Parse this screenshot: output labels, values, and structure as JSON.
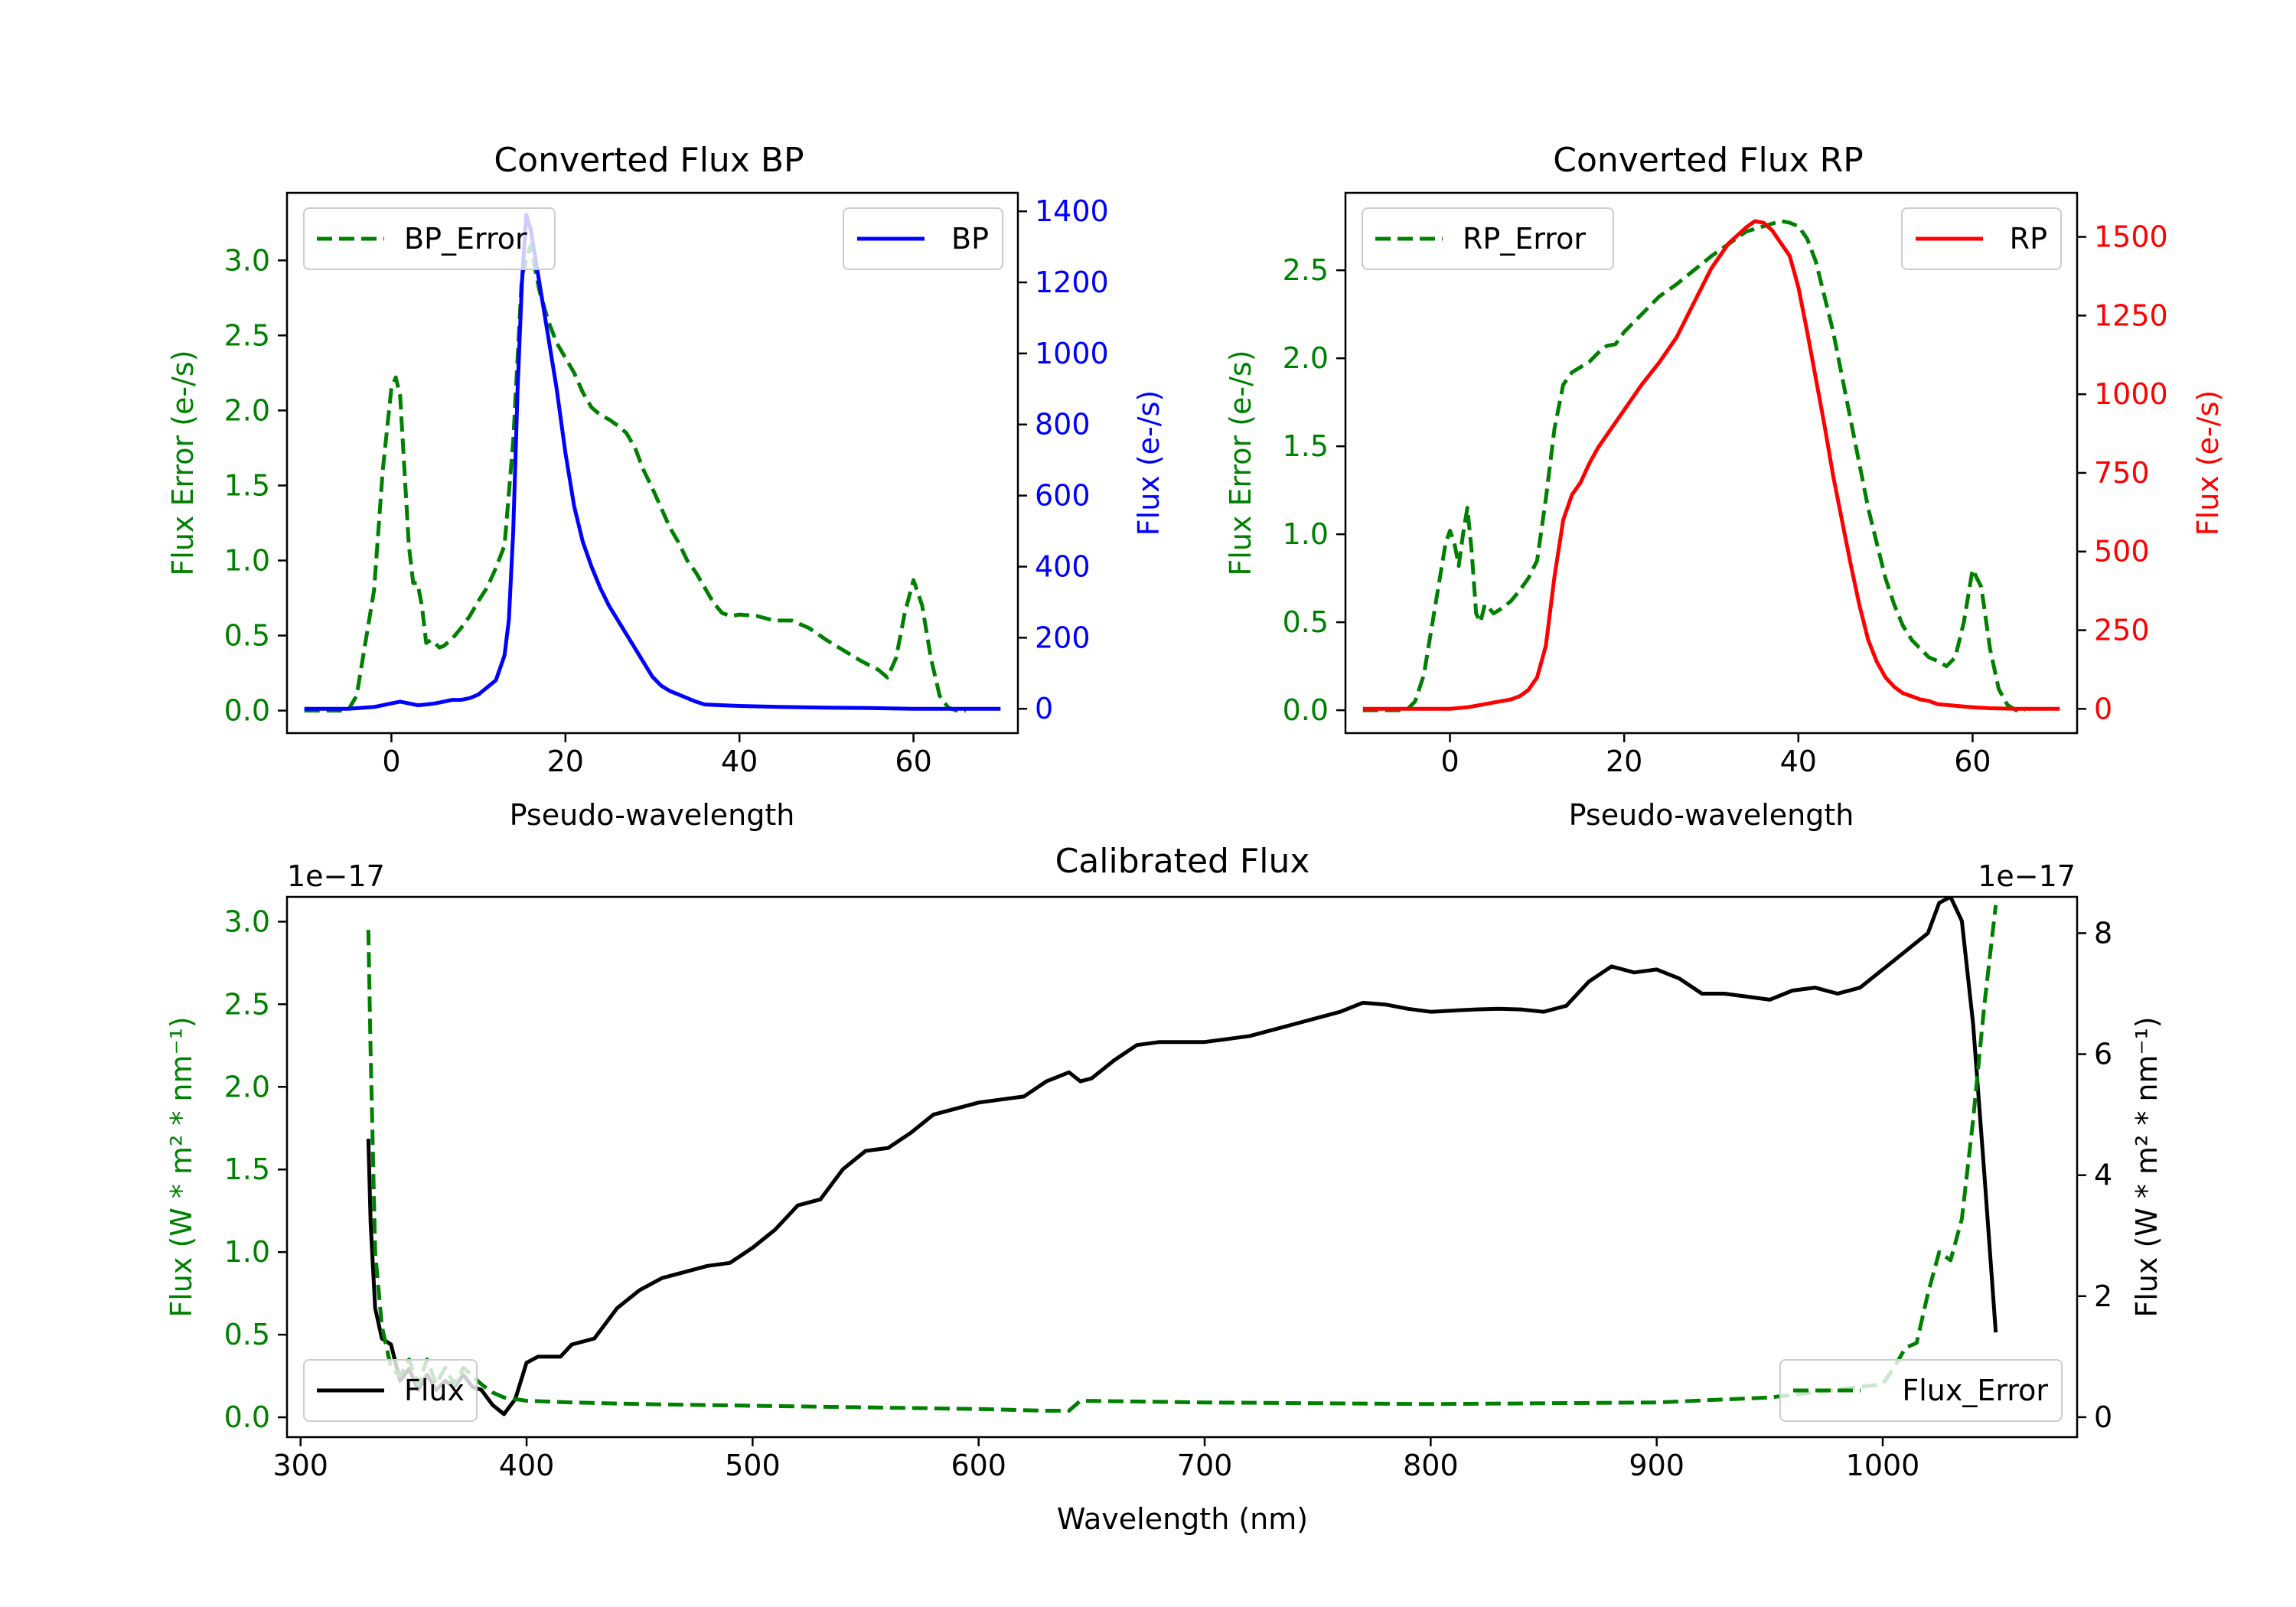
{
  "colors": {
    "bp": "#0000ff",
    "rp": "#ff0000",
    "error": "#008000",
    "flux": "#000000",
    "axis": "#000000"
  },
  "chart_data": [
    {
      "type": "line",
      "title": "Converted Flux BP",
      "xlabel": "Pseudo-wavelength",
      "ylabel_left": "Flux Error (e-/s)",
      "ylabel_right": "Flux (e-/s)",
      "xlim": [
        -12,
        72
      ],
      "ylim_left": [
        -0.15,
        3.45
      ],
      "ylim_right": [
        -68.5,
        1452
      ],
      "xticks": [
        0,
        20,
        40,
        60
      ],
      "yticks_left": [
        0.0,
        0.5,
        1.0,
        1.5,
        2.0,
        2.5,
        3.0
      ],
      "yticks_right": [
        0,
        200,
        400,
        600,
        800,
        1000,
        1200,
        1400
      ],
      "legend_left": {
        "position": "upper left",
        "entries": [
          "BP_Error"
        ]
      },
      "legend_right": {
        "position": "upper right",
        "entries": [
          "BP"
        ]
      },
      "series": [
        {
          "name": "BP_Error",
          "axis": "left",
          "color": "#008000",
          "dash": true,
          "x": [
            -10,
            -5,
            -4,
            -2,
            -1,
            0,
            0.5,
            1,
            1.5,
            2,
            2.5,
            3,
            3.5,
            4,
            4.5,
            5,
            5.5,
            6,
            7,
            8,
            9,
            10,
            11,
            12,
            13,
            14,
            15,
            16,
            17,
            18,
            19,
            20,
            21,
            22,
            23,
            24,
            25,
            26,
            27,
            28,
            29,
            30,
            31,
            32,
            33,
            34,
            35,
            36,
            37,
            38,
            39,
            40,
            42,
            44,
            46,
            48,
            50,
            52,
            54,
            56,
            57,
            58,
            59,
            60,
            61,
            62,
            63,
            64,
            65,
            66
          ],
          "values": [
            0,
            0,
            0.1,
            0.8,
            1.6,
            2.15,
            2.22,
            2.1,
            1.6,
            1.1,
            0.85,
            0.85,
            0.7,
            0.45,
            0.47,
            0.45,
            0.42,
            0.43,
            0.48,
            0.55,
            0.63,
            0.73,
            0.82,
            0.95,
            1.1,
            1.8,
            2.9,
            3.1,
            2.8,
            2.6,
            2.45,
            2.35,
            2.25,
            2.12,
            2.02,
            1.97,
            1.94,
            1.9,
            1.85,
            1.75,
            1.6,
            1.48,
            1.35,
            1.22,
            1.12,
            1.0,
            0.92,
            0.82,
            0.72,
            0.65,
            0.63,
            0.64,
            0.63,
            0.6,
            0.6,
            0.55,
            0.47,
            0.4,
            0.33,
            0.27,
            0.22,
            0.35,
            0.65,
            0.87,
            0.7,
            0.35,
            0.1,
            0.02,
            0,
            0
          ]
        },
        {
          "name": "BP",
          "axis": "right",
          "color": "#0000ff",
          "dash": false,
          "x": [
            -10,
            -5,
            -2,
            -1,
            0,
            1,
            2,
            3,
            4,
            5,
            6,
            7,
            8,
            9,
            10,
            11,
            12,
            13,
            13.5,
            14,
            14.5,
            15,
            15.5,
            16,
            17,
            18,
            19,
            20,
            21,
            22,
            23,
            24,
            25,
            26,
            27,
            28,
            29,
            30,
            31,
            32,
            33,
            34,
            35,
            36,
            38,
            40,
            45,
            50,
            55,
            60,
            62,
            65,
            70
          ],
          "values": [
            0,
            0,
            5,
            10,
            15,
            20,
            15,
            10,
            12,
            15,
            20,
            25,
            25,
            30,
            40,
            60,
            80,
            150,
            250,
            500,
            900,
            1200,
            1390,
            1350,
            1200,
            1050,
            900,
            720,
            570,
            470,
            400,
            340,
            290,
            250,
            210,
            170,
            130,
            90,
            65,
            50,
            40,
            30,
            20,
            12,
            10,
            8,
            5,
            3,
            2,
            0,
            0,
            0,
            0
          ]
        }
      ]
    },
    {
      "type": "line",
      "title": "Converted Flux RP",
      "xlabel": "Pseudo-wavelength",
      "ylabel_left": "Flux Error (e-/s)",
      "ylabel_right": "Flux (e-/s)",
      "xlim": [
        -12,
        72
      ],
      "ylim_left": [
        -0.13,
        2.94
      ],
      "ylim_right": [
        -77,
        1640
      ],
      "xticks": [
        0,
        20,
        40,
        60
      ],
      "yticks_left": [
        0.0,
        0.5,
        1.0,
        1.5,
        2.0,
        2.5
      ],
      "yticks_right": [
        0,
        250,
        500,
        750,
        1000,
        1250,
        1500
      ],
      "legend_left": {
        "position": "upper left",
        "entries": [
          "RP_Error"
        ]
      },
      "legend_right": {
        "position": "upper right",
        "entries": [
          "RP"
        ]
      },
      "series": [
        {
          "name": "RP_Error",
          "axis": "left",
          "color": "#008000",
          "dash": true,
          "x": [
            -10,
            -5,
            -4,
            -3,
            -2,
            -1,
            -0.5,
            0,
            0.5,
            1,
            1.5,
            2,
            2.5,
            3,
            3.5,
            4,
            4.5,
            5,
            6,
            7,
            8,
            9,
            10,
            11,
            12,
            13,
            14,
            15,
            16,
            17,
            18,
            19,
            20,
            22,
            24,
            26,
            28,
            30,
            32,
            34,
            36,
            38,
            39,
            40,
            41,
            42,
            43,
            44,
            45,
            46,
            47,
            48,
            49,
            50,
            51,
            52,
            53,
            54,
            55,
            56,
            57,
            58,
            59,
            60,
            61,
            62,
            63,
            64,
            65,
            66
          ],
          "values": [
            0,
            0,
            0.05,
            0.2,
            0.5,
            0.8,
            0.95,
            1.02,
            0.95,
            0.82,
            1.0,
            1.15,
            0.9,
            0.55,
            0.5,
            0.6,
            0.58,
            0.55,
            0.58,
            0.62,
            0.68,
            0.75,
            0.85,
            1.2,
            1.6,
            1.85,
            1.92,
            1.95,
            1.98,
            2.03,
            2.07,
            2.08,
            2.15,
            2.25,
            2.35,
            2.42,
            2.5,
            2.58,
            2.65,
            2.72,
            2.75,
            2.78,
            2.77,
            2.75,
            2.68,
            2.55,
            2.35,
            2.15,
            1.9,
            1.65,
            1.4,
            1.15,
            0.95,
            0.75,
            0.6,
            0.48,
            0.4,
            0.35,
            0.3,
            0.28,
            0.25,
            0.3,
            0.5,
            0.8,
            0.7,
            0.35,
            0.12,
            0.03,
            0,
            0
          ]
        },
        {
          "name": "RP",
          "axis": "right",
          "color": "#ff0000",
          "dash": false,
          "x": [
            -10,
            -5,
            0,
            2,
            4,
            5,
            6,
            7,
            8,
            9,
            10,
            11,
            12,
            13,
            14,
            15,
            16,
            17,
            18,
            20,
            22,
            24,
            26,
            28,
            30,
            32,
            34,
            35,
            36,
            37,
            38,
            39,
            40,
            41,
            42,
            43,
            44,
            45,
            46,
            47,
            48,
            49,
            50,
            51,
            52,
            53,
            54,
            55,
            56,
            58,
            60,
            62,
            65,
            70
          ],
          "values": [
            0,
            0,
            0,
            5,
            15,
            20,
            25,
            30,
            40,
            60,
            100,
            200,
            420,
            600,
            680,
            720,
            780,
            830,
            870,
            950,
            1030,
            1100,
            1180,
            1290,
            1400,
            1480,
            1530,
            1550,
            1545,
            1520,
            1480,
            1440,
            1340,
            1200,
            1050,
            900,
            740,
            600,
            460,
            330,
            220,
            150,
            100,
            70,
            50,
            40,
            30,
            25,
            15,
            10,
            5,
            2,
            0,
            0
          ]
        }
      ]
    },
    {
      "type": "line",
      "title": "Calibrated Flux",
      "xlabel": "Wavelength (nm)",
      "ylabel_left": "Flux (W * m² * nm⁻¹)",
      "ylabel_right": "Flux (W * m² * nm⁻¹)",
      "offset_left": "1e−17",
      "offset_right": "1e−17",
      "xlim": [
        294,
        1086
      ],
      "ylim_left": [
        -0.12,
        3.15
      ],
      "ylim_right": [
        -0.33,
        8.6
      ],
      "xticks": [
        300,
        400,
        500,
        600,
        700,
        800,
        900,
        1000
      ],
      "yticks_left": [
        0.0,
        0.5,
        1.0,
        1.5,
        2.0,
        2.5,
        3.0
      ],
      "yticks_right": [
        0,
        2,
        4,
        6,
        8
      ],
      "legend_left": {
        "position": "lower left",
        "entries": [
          "Flux"
        ]
      },
      "legend_right": {
        "position": "lower right",
        "entries": [
          "Flux_Error"
        ]
      },
      "series": [
        {
          "name": "Flux",
          "axis": "right",
          "color": "#000000",
          "dash": false,
          "x": [
            330,
            331,
            333,
            336,
            340,
            344,
            348,
            352,
            356,
            360,
            364,
            368,
            372,
            376,
            380,
            385,
            390,
            395,
            400,
            405,
            410,
            415,
            420,
            425,
            430,
            440,
            450,
            460,
            470,
            480,
            490,
            500,
            510,
            520,
            530,
            540,
            550,
            560,
            570,
            580,
            590,
            600,
            610,
            620,
            630,
            640,
            645,
            650,
            655,
            660,
            670,
            680,
            690,
            700,
            710,
            720,
            730,
            740,
            750,
            760,
            770,
            780,
            790,
            800,
            810,
            820,
            830,
            840,
            850,
            860,
            870,
            880,
            890,
            900,
            910,
            920,
            930,
            940,
            950,
            960,
            970,
            980,
            990,
            1000,
            1010,
            1020,
            1025,
            1030,
            1035,
            1040,
            1045,
            1050
          ],
          "values": [
            4.6,
            3.2,
            1.8,
            1.3,
            1.2,
            0.6,
            0.8,
            0.45,
            0.7,
            0.45,
            0.6,
            0.5,
            0.7,
            0.5,
            0.45,
            0.2,
            0.05,
            0.3,
            0.9,
            1.0,
            1.0,
            1.0,
            1.2,
            1.25,
            1.3,
            1.8,
            2.1,
            2.3,
            2.4,
            2.5,
            2.55,
            2.8,
            3.1,
            3.5,
            3.6,
            4.1,
            4.4,
            4.45,
            4.7,
            5.0,
            5.1,
            5.2,
            5.25,
            5.3,
            5.55,
            5.7,
            5.55,
            5.6,
            5.75,
            5.9,
            6.15,
            6.2,
            6.2,
            6.2,
            6.25,
            6.3,
            6.4,
            6.5,
            6.6,
            6.7,
            6.85,
            6.82,
            6.75,
            6.7,
            6.72,
            6.74,
            6.75,
            6.74,
            6.7,
            6.8,
            7.2,
            7.45,
            7.35,
            7.4,
            7.25,
            7.0,
            7.0,
            6.95,
            6.9,
            7.05,
            7.1,
            7.0,
            7.1,
            7.4,
            7.7,
            8.0,
            8.5,
            8.6,
            8.2,
            6.5,
            4.0,
            1.4
          ]
        },
        {
          "name": "Flux_Error",
          "axis": "left",
          "color": "#008000",
          "dash": true,
          "x": [
            330,
            331,
            333,
            336,
            340,
            344,
            348,
            352,
            356,
            360,
            364,
            368,
            372,
            376,
            380,
            385,
            390,
            400,
            420,
            450,
            500,
            550,
            600,
            630,
            640,
            645,
            700,
            800,
            900,
            950,
            1000,
            1005,
            1010,
            1015,
            1020,
            1025,
            1030,
            1035,
            1040,
            1045,
            1050
          ],
          "values": [
            2.95,
            2.2,
            1.0,
            0.55,
            0.3,
            0.25,
            0.35,
            0.2,
            0.35,
            0.2,
            0.3,
            0.2,
            0.3,
            0.25,
            0.2,
            0.15,
            0.12,
            0.1,
            0.09,
            0.08,
            0.07,
            0.06,
            0.05,
            0.04,
            0.04,
            0.1,
            0.09,
            0.08,
            0.09,
            0.12,
            0.2,
            0.3,
            0.42,
            0.45,
            0.75,
            1.0,
            0.95,
            1.2,
            1.8,
            2.5,
            3.1
          ]
        }
      ]
    }
  ]
}
